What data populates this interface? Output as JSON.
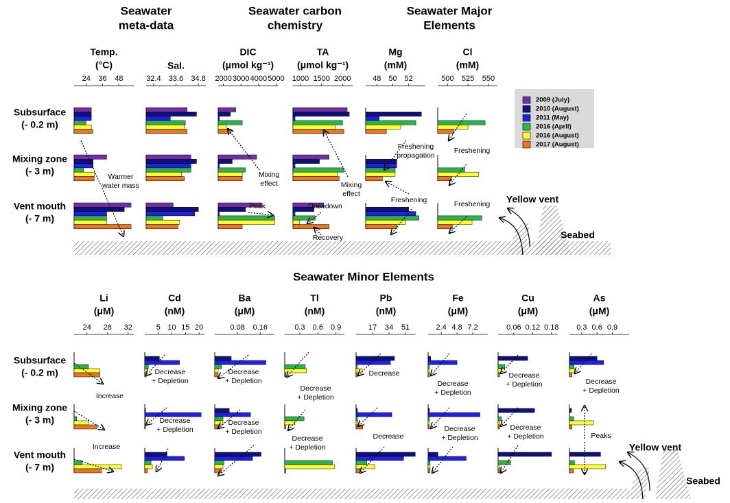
{
  "sections": [
    [
      "Seawater",
      "meta-data"
    ],
    [
      "Seawater carbon",
      "chemistry"
    ],
    [
      "Seawater Major",
      "Elements"
    ],
    [
      "Seawater Minor Elements"
    ]
  ],
  "row_labels": [
    [
      "Subsurface",
      "(- 0.2 m)"
    ],
    [
      "Mixing zone",
      "(- 3 m)"
    ],
    [
      "Vent mouth",
      "(- 7 m)"
    ]
  ],
  "legend": [
    {
      "name": "2009 (July)",
      "color": "#7030a0"
    },
    {
      "name": "2010 (August)",
      "color": "#10107a"
    },
    {
      "name": "2011 (May)",
      "color": "#2020e0"
    },
    {
      "name": "2016 (April)",
      "color": "#2db34a"
    },
    {
      "name": "2016 (August)",
      "color": "#ffff33"
    },
    {
      "name": "2017 (August)",
      "color": "#e87722"
    }
  ],
  "annotations": [
    [
      "Warmer",
      "water mass"
    ],
    [
      "Mixing",
      "effect"
    ],
    [
      "Peak"
    ],
    [
      "Drawdown"
    ],
    [
      "Recovery"
    ],
    [
      "Mixing",
      "effect"
    ],
    [
      "Freshening",
      "propagation"
    ],
    [
      "Freshening"
    ],
    [
      "Freshening"
    ],
    [
      "Freshening"
    ],
    [
      "Yellow vent"
    ],
    [
      "Seabed"
    ],
    [
      "Increase"
    ],
    [
      "Increase"
    ],
    [
      "Decrease",
      "+ Depletion"
    ],
    [
      "Decrease",
      "+ Depletion"
    ],
    [
      "Decrease",
      "+ Depletion"
    ],
    [
      "Decrease",
      "+ Depletion"
    ],
    [
      "Decrease",
      "+ Depletion"
    ],
    [
      "Decrease",
      "+ Depletion"
    ],
    [
      "Decrease"
    ],
    [
      "Decrease"
    ],
    [
      "Decrease",
      "+ Depletion"
    ],
    [
      "Decrease",
      "+ Depletion"
    ],
    [
      "Decrease",
      "+ Depletion"
    ],
    [
      "Decrease",
      "+ Depletion"
    ],
    [
      "Decrease",
      "+ Depletion"
    ],
    [
      "Peaks"
    ],
    [
      "Yellow vent"
    ],
    [
      "Seabed"
    ]
  ],
  "chart_data": [
    {
      "type": "bar",
      "title": [
        "Temp.",
        "(°C)"
      ],
      "xlim": [
        15,
        59
      ],
      "xticks": [
        24,
        36,
        48
      ],
      "values": [
        [
          27.7,
          39,
          57
        ],
        [
          27.7,
          29,
          52
        ],
        [
          27.7,
          29,
          39
        ],
        [
          23.7,
          22,
          39
        ],
        [
          27.7,
          29.8,
          39
        ],
        [
          28.8,
          29.8,
          57
        ]
      ]
    },
    {
      "type": "bar",
      "title": [
        "Sal."
      ],
      "xlim": [
        32.0,
        35.2
      ],
      "xticks": [
        32.4,
        33.6,
        34.8
      ],
      "values": [
        [
          34.2,
          34.4,
          33.45
        ],
        [
          34.7,
          34.7,
          34.8
        ],
        [
          33.3,
          34.4,
          34.6
        ],
        [
          34.1,
          34.4,
          32.9
        ],
        [
          34.05,
          33.9,
          33.8
        ],
        [
          34.2,
          34.05,
          33.7
        ]
      ]
    },
    {
      "type": "bar",
      "title": [
        "DIC",
        "(μmol kg⁻¹)"
      ],
      "xlim": [
        1700,
        5100
      ],
      "xticks": [
        2000,
        3000,
        4000,
        5000
      ],
      "values": [
        [
          2700,
          3890,
          4180
        ],
        [
          2400,
          2500,
          3260
        ],
        [
          1770,
          1770,
          1770
        ],
        [
          3070,
          3260,
          4920
        ],
        [
          2150,
          3070,
          4920
        ],
        [
          2440,
          3070,
          3070
        ]
      ]
    },
    {
      "type": "bar",
      "title": [
        "TA",
        "(μmol kg⁻¹)"
      ],
      "xlim": [
        820,
        2240
      ],
      "xticks": [
        1000,
        1500,
        2000
      ],
      "values": [
        [
          2110,
          1680,
          1550
        ],
        [
          2160,
          1450,
          1320
        ],
        [
          870,
          870,
          870
        ],
        [
          2000,
          2030,
          1350
        ],
        [
          1840,
          1870,
          980
        ],
        [
          2030,
          1920,
          1680
        ]
      ]
    },
    {
      "type": "bar",
      "title": [
        "Mg",
        "(mM)"
      ],
      "xlim": [
        46.6,
        54.1
      ],
      "xticks": [
        48,
        50,
        52
      ],
      "values": [
        [
          null,
          null,
          null
        ],
        [
          53.6,
          50.5,
          52.0
        ],
        [
          48.3,
          50.5,
          52.9
        ],
        [
          52.9,
          50.3,
          53.3
        ],
        [
          51.0,
          50.3,
          51.6
        ],
        [
          49.2,
          48.7,
          50.5
        ]
      ]
    },
    {
      "type": "bar",
      "title": [
        "Cl",
        "(mM)"
      ],
      "xlim": [
        488,
        561
      ],
      "xticks": [
        500,
        525,
        550
      ],
      "values": [
        [
          null,
          null,
          null
        ],
        [
          null,
          null,
          null
        ],
        [
          null,
          null,
          null
        ],
        [
          546,
          521,
          542
        ],
        [
          525,
          538,
          530
        ],
        [
          508,
          505,
          506
        ]
      ]
    },
    {
      "type": "bar",
      "title": [
        "Li",
        "(μM)"
      ],
      "xlim": [
        21.5,
        33.1
      ],
      "xticks": [
        24,
        28,
        32
      ],
      "values": [
        [
          null,
          null,
          null
        ],
        [
          null,
          null,
          null
        ],
        [
          null,
          null,
          null
        ],
        [
          24.3,
          22,
          23.1
        ],
        [
          26.5,
          24.3,
          30.7
        ],
        [
          26.5,
          26,
          26.8
        ]
      ]
    },
    {
      "type": "bar",
      "title": [
        "Cd",
        "(nM)"
      ],
      "xlim": [
        0,
        22
      ],
      "xticks": [
        5,
        10,
        15,
        20
      ],
      "values": [
        [
          null,
          null,
          null
        ],
        [
          5.4,
          0.3,
          8.2
        ],
        [
          12.8,
          20.8,
          14.6
        ],
        [
          1.3,
          0.3,
          2.3
        ],
        [
          0.8,
          0.3,
          2.8
        ],
        [
          0.5,
          0.3,
          1
        ]
      ]
    },
    {
      "type": "bar",
      "title": [
        "Ba",
        "(μM)"
      ],
      "xlim": [
        0,
        0.21
      ],
      "xticks": [
        0.08,
        0.16
      ],
      "values": [
        [
          null,
          null,
          null
        ],
        [
          0.058,
          0.051,
          0.163
        ],
        [
          0.18,
          0.126,
          0.133
        ],
        [
          0.024,
          0.029,
          0.032
        ],
        [
          0.012,
          0.029,
          0.029
        ],
        [
          0.012,
          0.017,
          0.024
        ]
      ]
    },
    {
      "type": "bar",
      "title": [
        "Tl",
        "(nM)"
      ],
      "xlim": [
        0.05,
        1.04
      ],
      "xticks": [
        0.3,
        0.6,
        0.9
      ],
      "values": [
        [
          null,
          null,
          null
        ],
        [
          null,
          null,
          null
        ],
        [
          null,
          null,
          null
        ],
        [
          0.39,
          0.37,
          0.84
        ],
        [
          0.41,
          0.22,
          0.88
        ],
        [
          0.07,
          0.07,
          0.07
        ]
      ]
    },
    {
      "type": "bar",
      "title": [
        "Pb",
        "(nM)"
      ],
      "xlim": [
        0,
        61.5
      ],
      "xticks": [
        17,
        34,
        51
      ],
      "values": [
        [
          null,
          null,
          null
        ],
        [
          39.6,
          1.4,
          61
        ],
        [
          35.4,
          36.8,
          49
        ],
        [
          1.4,
          1.4,
          11
        ],
        [
          6.3,
          2,
          19.4
        ],
        [
          1.4,
          6.9,
          4
        ]
      ]
    },
    {
      "type": "bar",
      "title": [
        "Fe",
        "(μM)"
      ],
      "xlim": [
        0.4,
        9.5
      ],
      "xticks": [
        2.4,
        4.8,
        7.2
      ],
      "values": [
        [
          null,
          null,
          null
        ],
        [
          0.8,
          0.6,
          1.9
        ],
        [
          4.8,
          8.3,
          6.2
        ],
        [
          0.6,
          0.6,
          0.7
        ],
        [
          0.6,
          0.6,
          0.7
        ],
        [
          0.6,
          0.6,
          0.7
        ]
      ]
    },
    {
      "type": "bar",
      "title": [
        "Cu",
        "(μM)"
      ],
      "xlim": [
        0.01,
        0.2
      ],
      "xticks": [
        0.06,
        0.12,
        0.18
      ],
      "values": [
        [
          null,
          null,
          null
        ],
        [
          0.104,
          0.126,
          0.18
        ],
        [
          null,
          null,
          null
        ],
        [
          0.031,
          0.02,
          0.05
        ],
        [
          0.02,
          0.015,
          0.015
        ],
        [
          0.015,
          0.015,
          0.015
        ]
      ]
    },
    {
      "type": "bar",
      "title": [
        "As",
        "(μM)"
      ],
      "xlim": [
        0.06,
        1.23
      ],
      "xticks": [
        0.3,
        0.6,
        0.9
      ],
      "values": [
        [
          null,
          null,
          null
        ],
        [
          0.6,
          0.1,
          0.67
        ],
        [
          0.73,
          null,
          null
        ],
        [
          0.15,
          0.14,
          0.16
        ],
        [
          0.16,
          0.53,
          0.77
        ],
        [
          0.11,
          0.11,
          0.14
        ]
      ]
    }
  ]
}
